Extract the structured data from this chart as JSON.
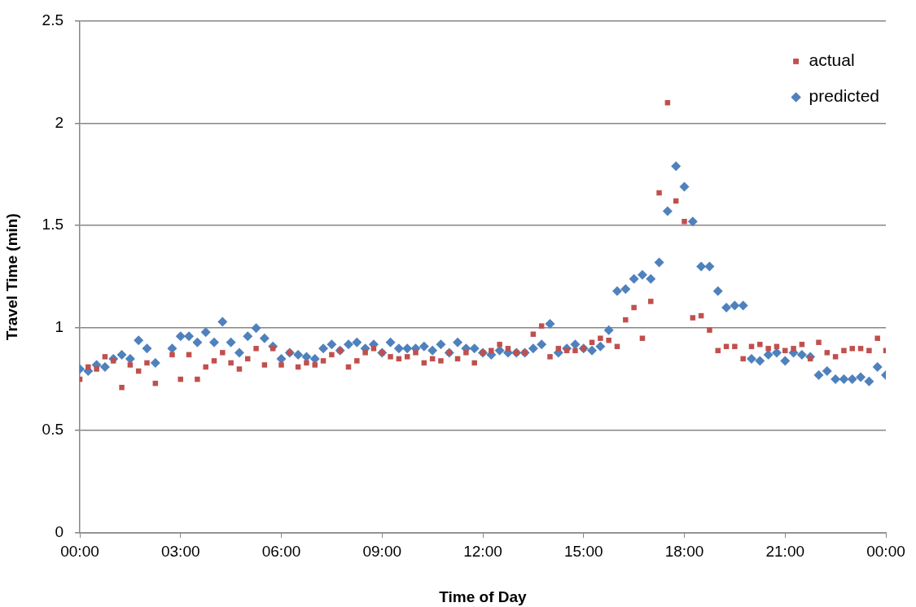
{
  "chart_data": {
    "type": "scatter",
    "xlabel": "Time of Day",
    "ylabel": "Travel Time (min)",
    "x": [
      0,
      0.25,
      0.5,
      0.75,
      1,
      1.25,
      1.5,
      1.75,
      2,
      2.25,
      2.75,
      3,
      3.25,
      3.5,
      3.75,
      4,
      4.25,
      4.5,
      4.75,
      5,
      5.25,
      5.5,
      5.75,
      6,
      6.25,
      6.5,
      6.75,
      7,
      7.25,
      7.5,
      7.75,
      8,
      8.25,
      8.5,
      8.75,
      9,
      9.25,
      9.5,
      9.75,
      10,
      10.25,
      10.5,
      10.75,
      11,
      11.25,
      11.5,
      11.75,
      12,
      12.25,
      12.5,
      12.75,
      13,
      13.25,
      13.5,
      13.75,
      14,
      14.25,
      14.5,
      14.75,
      15,
      15.25,
      15.5,
      15.75,
      16,
      16.25,
      16.5,
      16.75,
      17,
      17.25,
      17.5,
      17.75,
      18,
      18.25,
      18.5,
      18.75,
      19,
      19.25,
      19.5,
      19.75,
      20,
      20.25,
      20.5,
      20.75,
      21,
      21.25,
      21.5,
      21.75,
      22,
      22.25,
      22.5,
      22.75,
      23,
      23.25,
      23.5,
      23.75,
      24
    ],
    "series": [
      {
        "name": "actual",
        "color": "#c0504d",
        "marker": "square",
        "values": [
          0.75,
          0.81,
          0.8,
          0.86,
          0.84,
          0.71,
          0.82,
          0.79,
          0.83,
          0.73,
          0.87,
          0.75,
          0.87,
          0.75,
          0.81,
          0.84,
          0.88,
          0.83,
          0.8,
          0.85,
          0.9,
          0.82,
          0.9,
          0.82,
          0.88,
          0.81,
          0.83,
          0.82,
          0.84,
          0.87,
          0.89,
          0.81,
          0.84,
          0.88,
          0.9,
          0.88,
          0.86,
          0.85,
          0.86,
          0.88,
          0.83,
          0.85,
          0.84,
          0.88,
          0.85,
          0.88,
          0.83,
          0.88,
          0.89,
          0.92,
          0.9,
          0.88,
          0.88,
          0.97,
          1.01,
          0.86,
          0.9,
          0.89,
          0.89,
          0.9,
          0.93,
          0.95,
          0.94,
          0.91,
          1.04,
          1.1,
          0.95,
          1.13,
          1.66,
          2.1,
          1.62,
          1.52,
          1.05,
          1.06,
          0.99,
          0.89,
          0.91,
          0.91,
          0.85,
          0.91,
          0.92,
          0.9,
          0.91,
          0.89,
          0.9,
          0.92,
          0.85,
          0.93,
          0.88,
          0.86,
          0.89,
          0.9,
          0.9,
          0.89,
          0.95,
          0.89
        ]
      },
      {
        "name": "predicted",
        "color": "#4f81bd",
        "marker": "diamond",
        "values": [
          0.8,
          0.79,
          0.82,
          0.81,
          0.85,
          0.87,
          0.85,
          0.94,
          0.9,
          0.83,
          0.9,
          0.96,
          0.96,
          0.93,
          0.98,
          0.93,
          1.03,
          0.93,
          0.88,
          0.96,
          1.0,
          0.95,
          0.91,
          0.85,
          0.88,
          0.87,
          0.86,
          0.85,
          0.9,
          0.92,
          0.89,
          0.92,
          0.93,
          0.9,
          0.92,
          0.88,
          0.93,
          0.9,
          0.9,
          0.9,
          0.91,
          0.89,
          0.92,
          0.88,
          0.93,
          0.9,
          0.9,
          0.88,
          0.87,
          0.89,
          0.88,
          0.88,
          0.88,
          0.9,
          0.92,
          1.02,
          0.88,
          0.9,
          0.92,
          0.9,
          0.89,
          0.91,
          0.99,
          1.18,
          1.19,
          1.24,
          1.26,
          1.24,
          1.32,
          1.57,
          1.79,
          1.69,
          1.52,
          1.3,
          1.3,
          1.18,
          1.1,
          1.11,
          1.11,
          0.85,
          0.84,
          0.87,
          0.88,
          0.84,
          0.88,
          0.87,
          0.86,
          0.77,
          0.79,
          0.75,
          0.75,
          0.75,
          0.76,
          0.74,
          0.81,
          0.77
        ]
      }
    ],
    "xlim": [
      0,
      24
    ],
    "xticks": [
      {
        "value": 0,
        "label": "00:00"
      },
      {
        "value": 3,
        "label": "03:00"
      },
      {
        "value": 6,
        "label": "06:00"
      },
      {
        "value": 9,
        "label": "09:00"
      },
      {
        "value": 12,
        "label": "12:00"
      },
      {
        "value": 15,
        "label": "15:00"
      },
      {
        "value": 18,
        "label": "18:00"
      },
      {
        "value": 21,
        "label": "21:00"
      },
      {
        "value": 24,
        "label": "00:00"
      }
    ],
    "ylim": [
      0,
      2.5
    ],
    "yticks": [
      0,
      0.5,
      1,
      1.5,
      2,
      2.5
    ],
    "grid": "y",
    "legend": "top right"
  }
}
